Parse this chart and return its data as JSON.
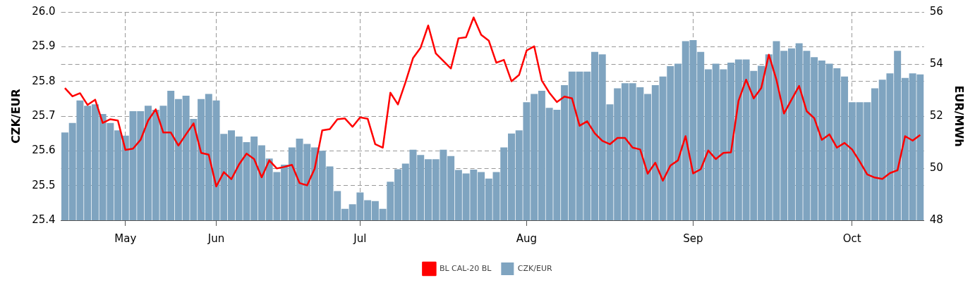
{
  "chart_data": {
    "type": "bar",
    "ylabel": "CZK/EUR",
    "y2label": "EUR/MWh",
    "categories": [
      null,
      null,
      null,
      null,
      null,
      null,
      null,
      null,
      "May",
      null,
      null,
      null,
      null,
      null,
      null,
      null,
      null,
      null,
      null,
      null,
      "Jun",
      null,
      null,
      null,
      null,
      null,
      null,
      null,
      null,
      null,
      null,
      null,
      null,
      null,
      null,
      null,
      null,
      null,
      null,
      "Jul",
      null,
      null,
      null,
      null,
      null,
      null,
      null,
      null,
      null,
      null,
      null,
      null,
      null,
      null,
      null,
      null,
      null,
      null,
      null,
      null,
      null,
      "Aug",
      null,
      null,
      null,
      null,
      null,
      null,
      null,
      null,
      null,
      null,
      null,
      null,
      null,
      null,
      null,
      null,
      null,
      null,
      null,
      null,
      null,
      "Sep",
      null,
      null,
      null,
      null,
      null,
      null,
      null,
      null,
      null,
      null,
      null,
      null,
      null,
      null,
      null,
      null,
      null,
      null,
      null,
      null,
      "Oct",
      null,
      null,
      null,
      null,
      null,
      null,
      null,
      null,
      null
    ],
    "series": [
      {
        "name": "BL CAL-20 BL",
        "type": "line",
        "axis": "y2",
        "color": "#ff0000",
        "values": [
          53.08,
          52.76,
          52.88,
          52.43,
          52.63,
          51.74,
          51.88,
          51.83,
          50.7,
          50.75,
          51.09,
          51.83,
          52.26,
          51.37,
          51.37,
          50.87,
          51.3,
          51.72,
          50.59,
          50.52,
          49.3,
          49.85,
          49.58,
          50.14,
          50.56,
          50.35,
          49.65,
          50.3,
          49.99,
          50.05,
          50.13,
          49.43,
          49.34,
          49.98,
          51.45,
          51.5,
          51.88,
          51.91,
          51.59,
          51.95,
          51.9,
          50.92,
          50.79,
          52.9,
          52.45,
          53.3,
          54.23,
          54.63,
          55.48,
          54.41,
          54.12,
          53.83,
          54.99,
          55.03,
          55.79,
          55.12,
          54.9,
          54.05,
          54.16,
          53.34,
          53.58,
          54.52,
          54.68,
          53.37,
          52.9,
          52.54,
          52.75,
          52.68,
          51.63,
          51.8,
          51.34,
          51.05,
          50.92,
          51.16,
          51.16,
          50.79,
          50.72,
          49.79,
          50.21,
          49.52,
          50.1,
          50.3,
          51.23,
          49.8,
          49.96,
          50.68,
          50.35,
          50.59,
          50.61,
          52.59,
          53.4,
          52.68,
          53.08,
          54.36,
          53.4,
          52.1,
          52.63,
          53.16,
          52.19,
          51.92,
          51.09,
          51.3,
          50.79,
          50.97,
          50.72,
          50.26,
          49.76,
          49.64,
          49.59,
          49.81,
          49.92,
          51.23,
          51.06,
          51.28
        ]
      },
      {
        "name": "CZK/EUR",
        "color": "#7fa4c0",
        "values": [
          25.653,
          25.68,
          25.745,
          25.73,
          25.734,
          25.706,
          25.68,
          25.659,
          25.644,
          25.714,
          25.714,
          25.73,
          25.718,
          25.73,
          25.773,
          25.749,
          25.759,
          25.692,
          25.749,
          25.764,
          25.745,
          25.649,
          25.659,
          25.641,
          25.625,
          25.641,
          25.616,
          25.578,
          25.539,
          25.56,
          25.61,
          25.635,
          25.62,
          25.61,
          25.6,
          25.555,
          25.484,
          25.433,
          25.446,
          25.48,
          25.458,
          25.455,
          25.433,
          25.511,
          25.547,
          25.563,
          25.603,
          25.588,
          25.576,
          25.576,
          25.603,
          25.585,
          25.545,
          25.535,
          25.546,
          25.539,
          25.52,
          25.539,
          25.61,
          25.65,
          25.659,
          25.74,
          25.764,
          25.773,
          25.724,
          25.718,
          25.789,
          25.828,
          25.828,
          25.828,
          25.885,
          25.878,
          25.734,
          25.78,
          25.795,
          25.795,
          25.783,
          25.764,
          25.789,
          25.814,
          25.844,
          25.851,
          25.916,
          25.919,
          25.885,
          25.835,
          25.851,
          25.835,
          25.854,
          25.863,
          25.863,
          25.83,
          25.845,
          25.878,
          25.916,
          25.888,
          25.895,
          25.91,
          25.888,
          25.87,
          25.86,
          25.851,
          25.838,
          25.814,
          25.74,
          25.74,
          25.74,
          25.78,
          25.805,
          25.823,
          25.888,
          25.81,
          25.823,
          25.82
        ]
      }
    ],
    "ylim": [
      25.4,
      26.0
    ],
    "yticks": [
      25.4,
      25.5,
      25.6,
      25.7,
      25.8,
      25.9,
      {
        "value": 26,
        "label": "26.0"
      }
    ],
    "y2lim": [
      48,
      56
    ],
    "y2ticks": [
      48,
      50,
      52,
      54,
      56
    ],
    "grid": true,
    "legend": "bottom",
    "marker": "none",
    "line_style": "solid"
  }
}
